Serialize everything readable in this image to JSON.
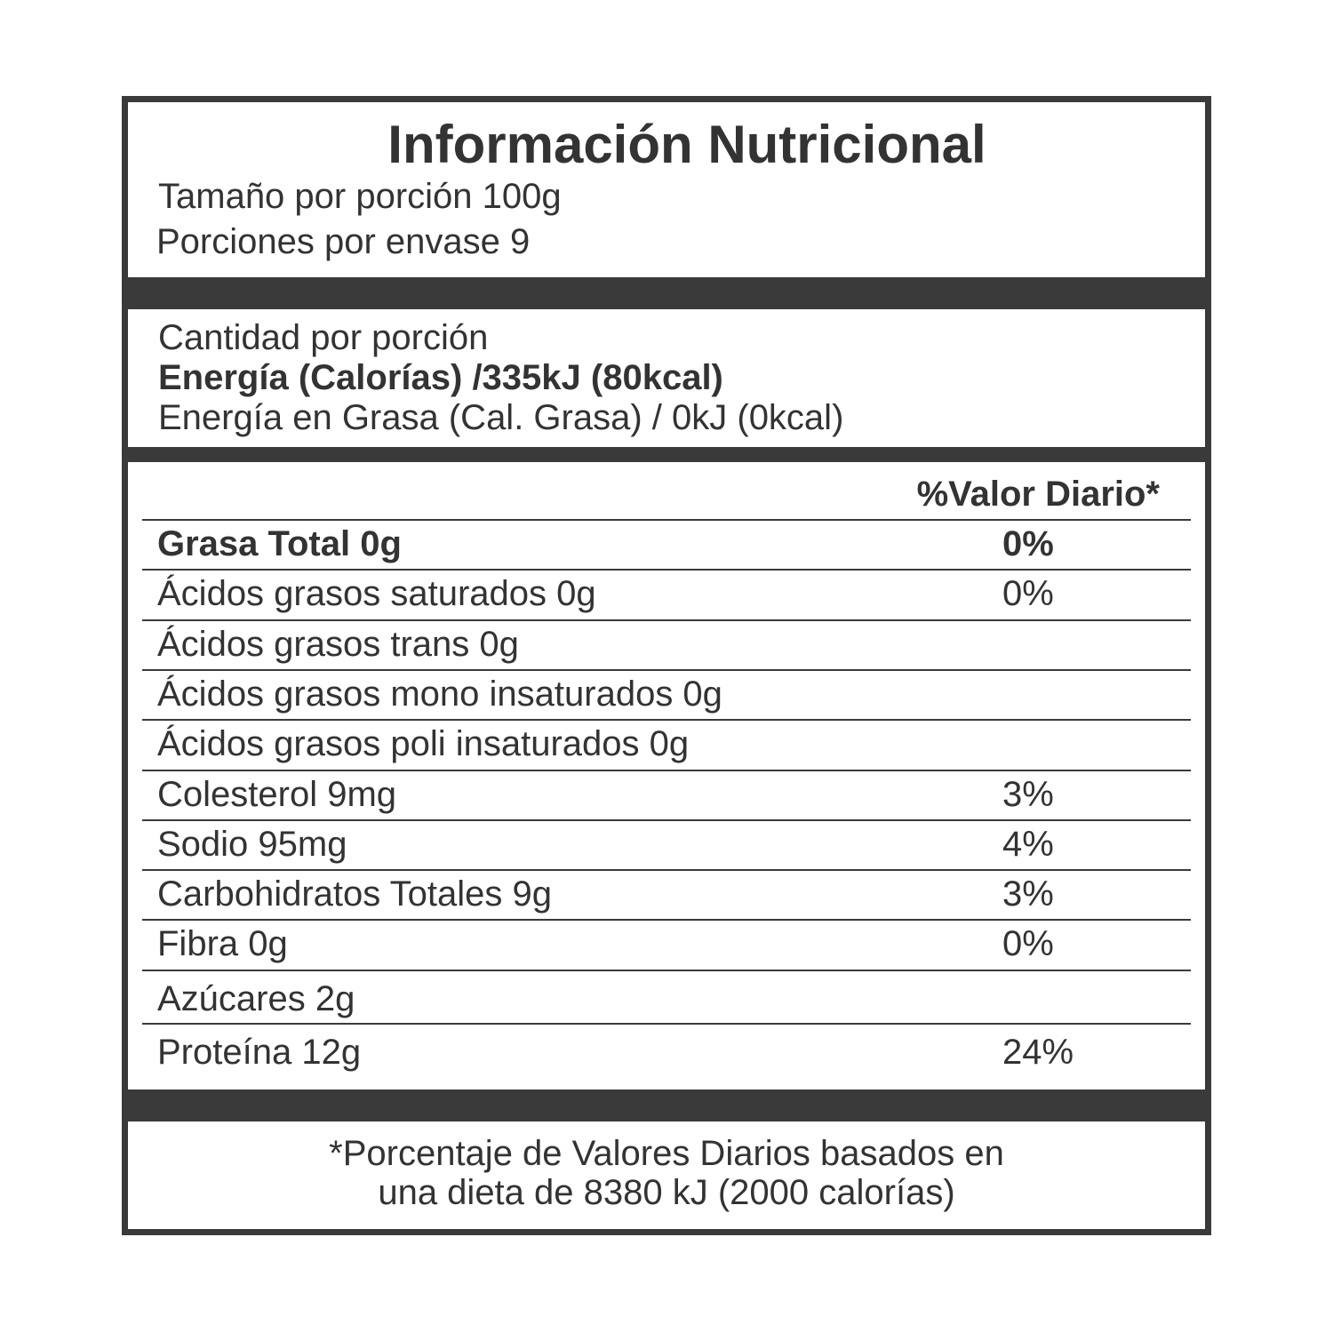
{
  "header": {
    "title": "Información Nutricional",
    "serving_size": "Tamaño por porción 100g",
    "servings": "Porciones por envase 9"
  },
  "amount": {
    "label": "Cantidad por porción",
    "energy": "Energía (Calorías) /335kJ (80kcal)",
    "fat_energy": "Energía en Grasa (Cal. Grasa) / 0kJ (0kcal)"
  },
  "table": {
    "header": "%Valor Diario*",
    "rows": [
      {
        "nutrient": "Grasa Total  0g",
        "daily_value": "0%"
      },
      {
        "nutrient": "Ácidos grasos saturados  0g",
        "daily_value": "0%"
      },
      {
        "nutrient": "Ácidos grasos trans  0g"
      },
      {
        "nutrient": "Ácidos grasos mono insaturados  0g"
      },
      {
        "nutrient": "Ácidos grasos poli insaturados  0g"
      },
      {
        "nutrient": "Colesterol  9mg",
        "daily_value": "3%"
      },
      {
        "nutrient": "Sodio  95mg",
        "daily_value": "4%"
      },
      {
        "nutrient": "Carbohidratos Totales  9g",
        "daily_value": "3%"
      },
      {
        "nutrient": "Fibra 0g",
        "daily_value": "0%"
      },
      {
        "nutrient": "Azúcares 2g"
      },
      {
        "nutrient": "Proteína 12g",
        "daily_value": "24%"
      }
    ]
  },
  "footnote": [
    "*Porcentaje de Valores Diarios basados en",
    "una dieta de 8380 kJ (2000 calorías)"
  ]
}
